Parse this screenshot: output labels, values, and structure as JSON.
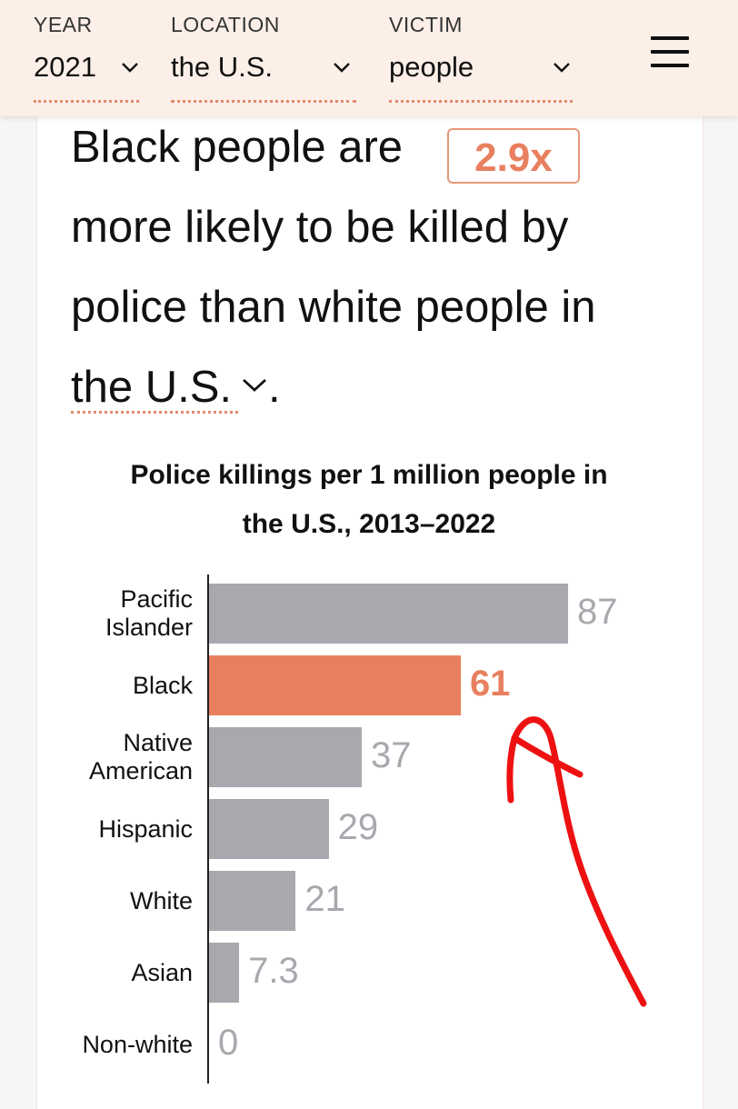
{
  "filters": [
    {
      "label": "YEAR",
      "value": "2021"
    },
    {
      "label": "LOCATION",
      "value": "the U.S."
    },
    {
      "label": "VICTIM",
      "value": "people"
    }
  ],
  "headline": {
    "line1": "Black people are",
    "ratio": "2.9x",
    "line2": "more likely to be killed by",
    "line3": "police than white people in",
    "location": "the U.S.",
    "period": "."
  },
  "chart_data": {
    "type": "bar",
    "orientation": "horizontal",
    "title_line1": "Police killings per 1 million people in",
    "title_line2": "the U.S., 2013–2022",
    "categories": [
      [
        "Pacific",
        "Islander"
      ],
      [
        "Black"
      ],
      [
        "Native",
        "American"
      ],
      [
        "Hispanic"
      ],
      [
        "White"
      ],
      [
        "Asian"
      ],
      [
        "Non-white"
      ]
    ],
    "values": [
      87,
      61,
      37,
      29,
      21,
      7.3,
      0
    ],
    "value_labels": [
      "87",
      "61",
      "37",
      "29",
      "21",
      "7.3",
      "0"
    ],
    "highlight_index": 1,
    "xlim": [
      0,
      100
    ],
    "colors": {
      "bar": "#a7a9ae",
      "highlight": "#e8805f",
      "annotation": "#ee1111"
    }
  }
}
